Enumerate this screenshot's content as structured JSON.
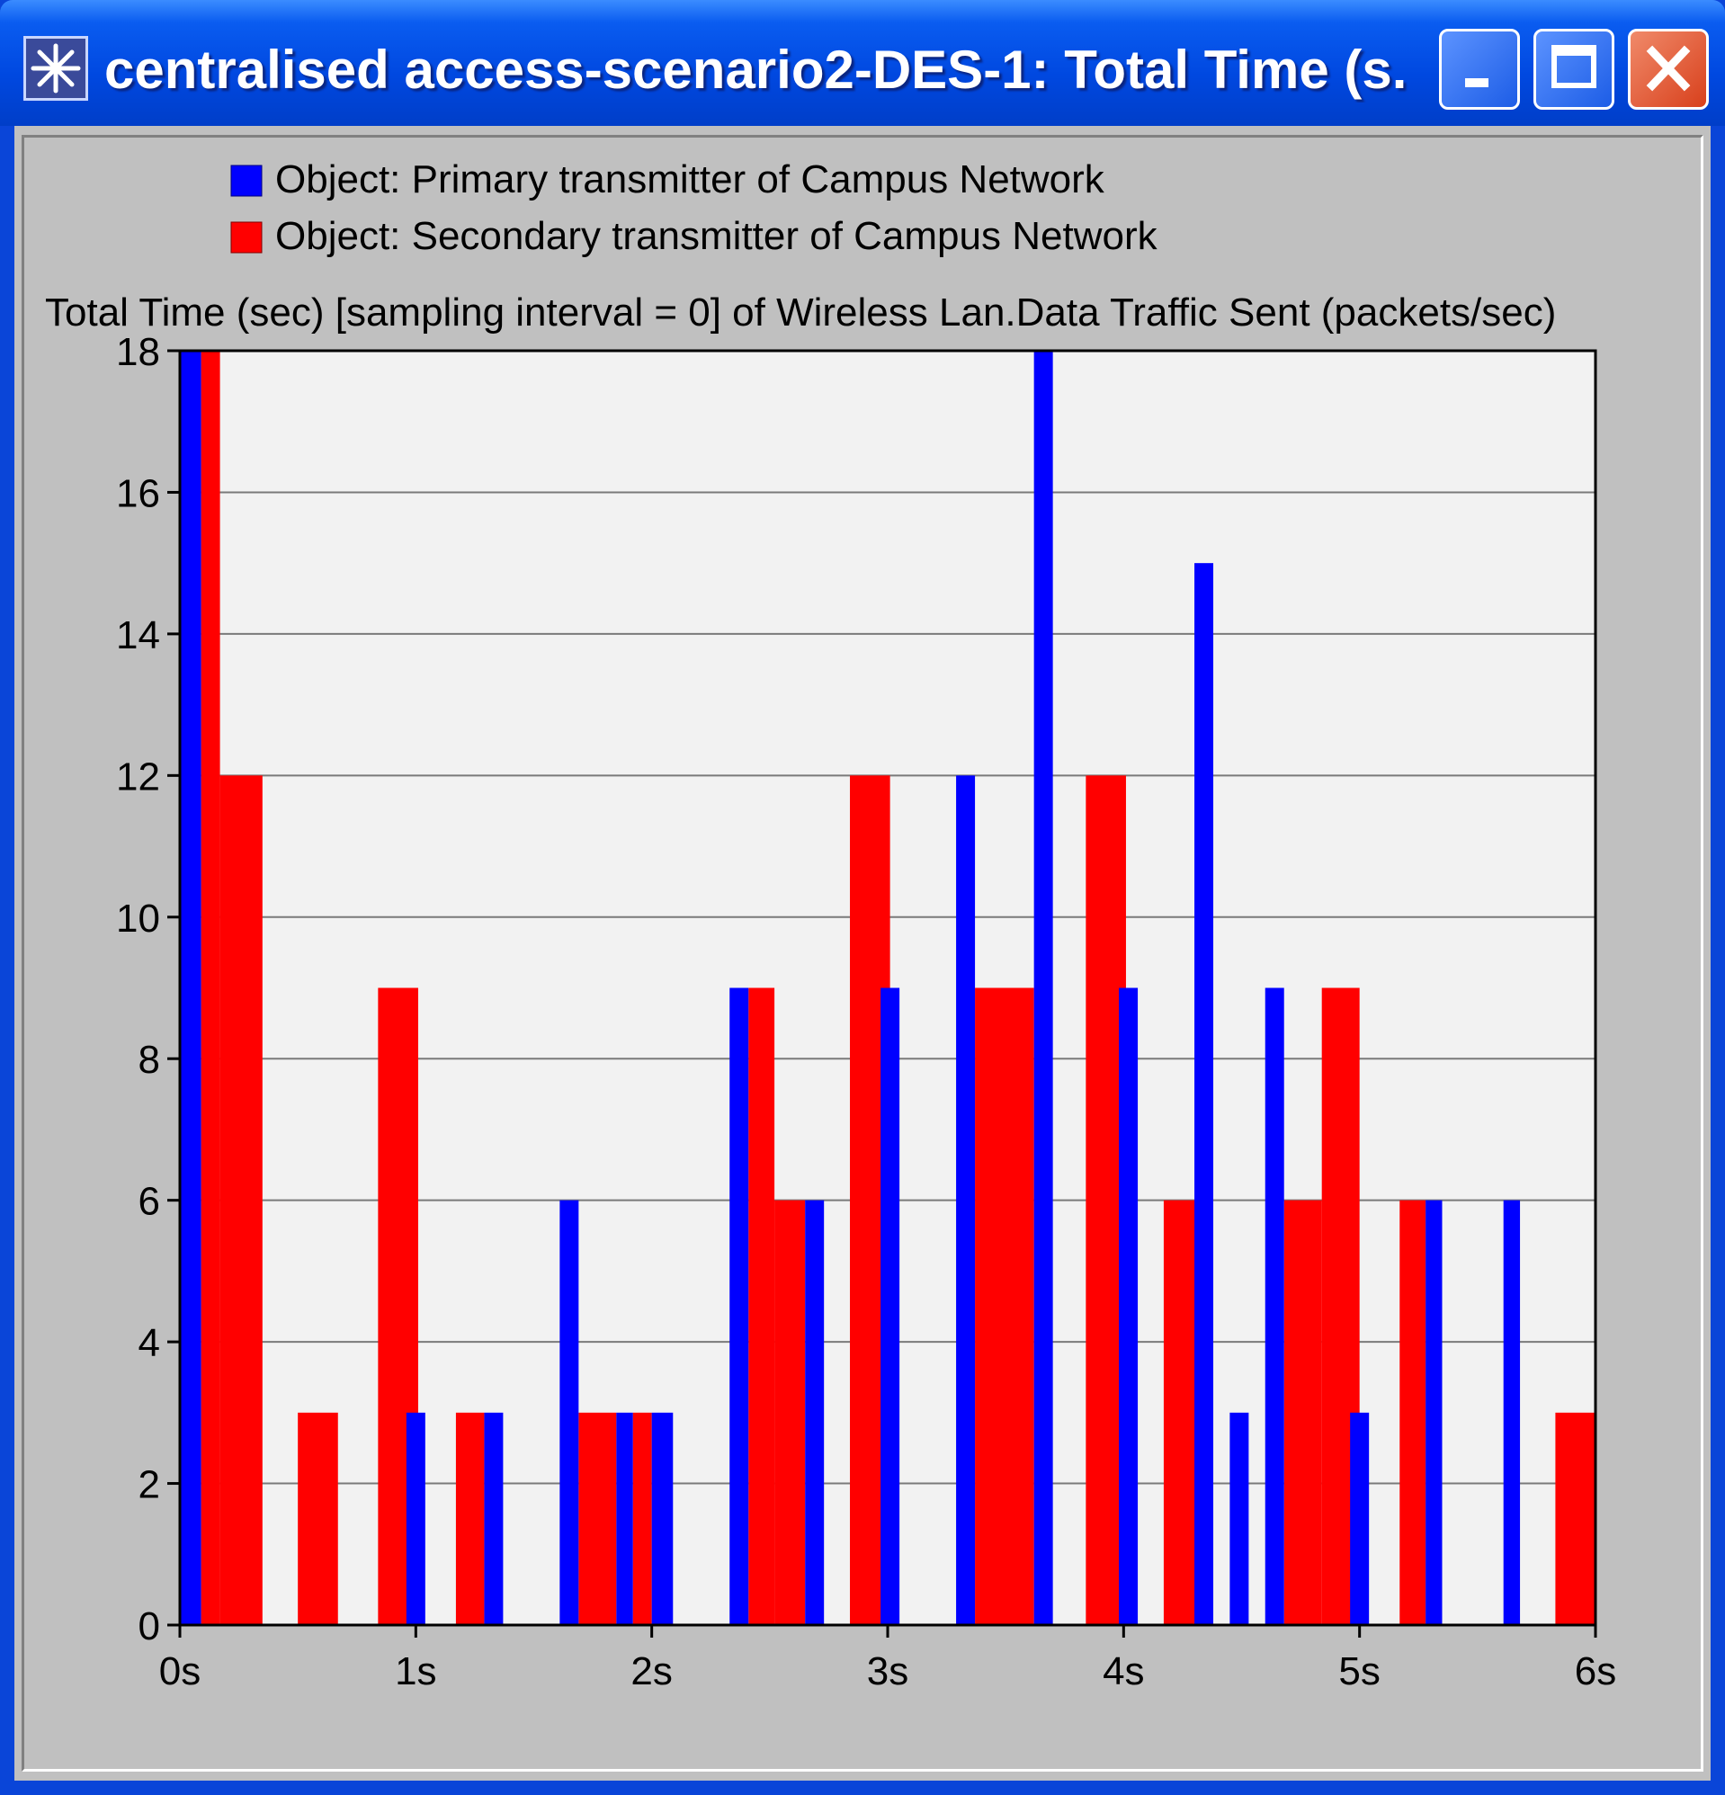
{
  "window": {
    "title": "centralised access-scenario2-DES-1: Total Time (s..."
  },
  "colors": {
    "primary_series": "#0000ff",
    "secondary_series": "#ff0000",
    "plot_background": "#f2f2f2",
    "window_background": "#c0c0c0"
  },
  "chart_data": {
    "type": "bar",
    "title": "Total Time (sec) [sampling interval = 0] of Wireless Lan.Data Traffic Sent (packets/sec)",
    "xlabel": "",
    "ylabel": "",
    "xlim": [
      0,
      6
    ],
    "ylim": [
      0,
      18
    ],
    "grid": true,
    "legend_position": "top",
    "x_ticks": [
      "0s",
      "1s",
      "2s",
      "3s",
      "4s",
      "5s",
      "6s"
    ],
    "y_ticks": [
      "0",
      "2",
      "4",
      "6",
      "8",
      "10",
      "12",
      "14",
      "16",
      "18"
    ],
    "series": [
      {
        "name": "Object: Primary transmitter of Campus Network",
        "color": "#0000ff",
        "bars": [
          {
            "x0": 0.0,
            "x1": 0.09,
            "y": 18
          },
          {
            "x0": 0.96,
            "x1": 1.04,
            "y": 3
          },
          {
            "x0": 1.29,
            "x1": 1.37,
            "y": 3
          },
          {
            "x0": 1.61,
            "x1": 1.69,
            "y": 6
          },
          {
            "x0": 1.85,
            "x1": 1.92,
            "y": 3
          },
          {
            "x0": 2.0,
            "x1": 2.09,
            "y": 3
          },
          {
            "x0": 2.33,
            "x1": 2.41,
            "y": 9
          },
          {
            "x0": 2.65,
            "x1": 2.73,
            "y": 6
          },
          {
            "x0": 2.97,
            "x1": 3.05,
            "y": 9
          },
          {
            "x0": 3.29,
            "x1": 3.37,
            "y": 12
          },
          {
            "x0": 3.62,
            "x1": 3.7,
            "y": 18
          },
          {
            "x0": 3.98,
            "x1": 4.06,
            "y": 9
          },
          {
            "x0": 4.3,
            "x1": 4.38,
            "y": 15
          },
          {
            "x0": 4.45,
            "x1": 4.53,
            "y": 3
          },
          {
            "x0": 4.6,
            "x1": 4.68,
            "y": 9
          },
          {
            "x0": 4.96,
            "x1": 5.04,
            "y": 3
          },
          {
            "x0": 5.28,
            "x1": 5.35,
            "y": 6
          },
          {
            "x0": 5.61,
            "x1": 5.68,
            "y": 6
          }
        ]
      },
      {
        "name": "Object: Secondary transmitter of Campus Network",
        "color": "#ff0000",
        "bars": [
          {
            "x0": 0.09,
            "x1": 0.17,
            "y": 18
          },
          {
            "x0": 0.17,
            "x1": 0.35,
            "y": 12
          },
          {
            "x0": 0.5,
            "x1": 0.67,
            "y": 3
          },
          {
            "x0": 0.84,
            "x1": 1.01,
            "y": 9
          },
          {
            "x0": 1.17,
            "x1": 1.29,
            "y": 3
          },
          {
            "x0": 1.69,
            "x1": 1.85,
            "y": 3
          },
          {
            "x0": 1.92,
            "x1": 2.0,
            "y": 3
          },
          {
            "x0": 2.41,
            "x1": 2.52,
            "y": 9
          },
          {
            "x0": 2.52,
            "x1": 2.65,
            "y": 6
          },
          {
            "x0": 2.84,
            "x1": 3.01,
            "y": 12
          },
          {
            "x0": 3.37,
            "x1": 3.62,
            "y": 9
          },
          {
            "x0": 3.84,
            "x1": 4.01,
            "y": 12
          },
          {
            "x0": 4.17,
            "x1": 4.33,
            "y": 6
          },
          {
            "x0": 4.68,
            "x1": 4.84,
            "y": 6
          },
          {
            "x0": 4.84,
            "x1": 5.0,
            "y": 9
          },
          {
            "x0": 5.17,
            "x1": 5.28,
            "y": 6
          },
          {
            "x0": 5.83,
            "x1": 6.0,
            "y": 3
          }
        ]
      }
    ]
  }
}
